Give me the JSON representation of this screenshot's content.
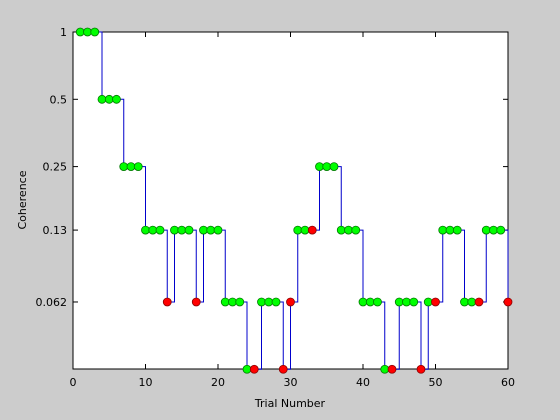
{
  "chart_data": {
    "type": "line",
    "style": "staircase",
    "xlabel": "Trial Number",
    "ylabel": "Coherence",
    "xlim": [
      0,
      60
    ],
    "x_ticks": [
      0,
      10,
      20,
      30,
      40,
      50,
      60
    ],
    "y_ticks": [
      {
        "label": "1",
        "value": 1
      },
      {
        "label": "0.5",
        "value": 0.5
      },
      {
        "label": "0.25",
        "value": 0.25
      },
      {
        "label": "0.13",
        "value": 0.13
      },
      {
        "label": "0.062",
        "value": 0.062
      }
    ],
    "y_scale": "log2 (stepped levels)",
    "y_floor": 0.031,
    "grid": false,
    "colors": {
      "line": "#0000cc",
      "correct": "#00ff00",
      "incorrect": "#ff0000",
      "marker_edge": "#007700",
      "background": "#cccccc",
      "axes_bg": "#ffffff"
    },
    "trials": {
      "x": [
        1,
        2,
        3,
        4,
        5,
        6,
        7,
        8,
        9,
        10,
        11,
        12,
        13,
        14,
        15,
        16,
        17,
        18,
        19,
        20,
        21,
        22,
        23,
        24,
        25,
        26,
        27,
        28,
        29,
        30,
        31,
        32,
        33,
        34,
        35,
        36,
        37,
        38,
        39,
        40,
        41,
        42,
        43,
        44,
        45,
        46,
        47,
        48,
        49,
        50,
        51,
        52,
        53,
        54,
        55,
        56,
        57,
        58,
        59,
        60
      ],
      "y": [
        1,
        1,
        1,
        0.5,
        0.5,
        0.5,
        0.25,
        0.25,
        0.25,
        0.13,
        0.13,
        0.13,
        0.062,
        0.13,
        0.13,
        0.13,
        0.062,
        0.13,
        0.13,
        0.13,
        0.062,
        0.062,
        0.062,
        0.031,
        0.031,
        0.062,
        0.062,
        0.062,
        0.031,
        0.062,
        0.13,
        0.13,
        0.13,
        0.25,
        0.25,
        0.25,
        0.13,
        0.13,
        0.13,
        0.062,
        0.062,
        0.062,
        0.031,
        0.031,
        0.062,
        0.062,
        0.062,
        0.031,
        0.062,
        0.062,
        0.13,
        0.13,
        0.13,
        0.062,
        0.062,
        0.062,
        0.13,
        0.13,
        0.13,
        0.062
      ],
      "correct": [
        1,
        1,
        1,
        1,
        1,
        1,
        1,
        1,
        1,
        1,
        1,
        1,
        0,
        1,
        1,
        1,
        0,
        1,
        1,
        1,
        1,
        1,
        1,
        1,
        0,
        1,
        1,
        1,
        0,
        0,
        1,
        1,
        0,
        1,
        1,
        1,
        1,
        1,
        1,
        1,
        1,
        1,
        1,
        0,
        1,
        1,
        1,
        0,
        1,
        0,
        1,
        1,
        1,
        1,
        1,
        0,
        1,
        1,
        1,
        0
      ]
    }
  }
}
